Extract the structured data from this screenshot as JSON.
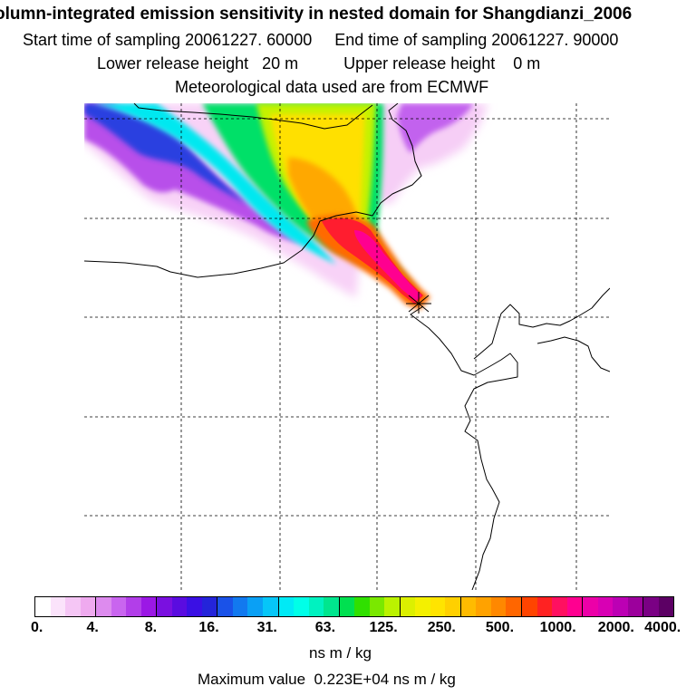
{
  "header": {
    "title": "olumn-integrated emission sensitivity in nested domain for Shangdianzi_2006",
    "sampling": "Start time of sampling 20061227. 60000     End time of sampling 20061227. 90000",
    "release": "Lower release height   20 m          Upper release height    0 m",
    "met": "Meteorological data used are from ECMWF"
  },
  "colorbar": {
    "tick_labels": [
      "0.",
      "4.",
      "8.",
      "16.",
      "31.",
      "63.",
      "125.",
      "250.",
      "500.",
      "1000.",
      "2000.",
      "4000."
    ],
    "units": "ns m / kg",
    "colors": [
      "#ffffff",
      "#fbe3fb",
      "#f5c6f5",
      "#efaaef",
      "#dd8bee",
      "#c965ef",
      "#b23ee9",
      "#9b18e5",
      "#7a10e0",
      "#5a0ce0",
      "#3a10e4",
      "#2424da",
      "#1a52e8",
      "#1279ef",
      "#0aa0f5",
      "#06c6f8",
      "#00eaf6",
      "#00ffe8",
      "#00f2c0",
      "#00e68e",
      "#00e050",
      "#30e000",
      "#7ae800",
      "#bbf200",
      "#dcf000",
      "#f4f000",
      "#ffe400",
      "#ffd000",
      "#ffbb00",
      "#ffa200",
      "#ff8800",
      "#ff6600",
      "#ff4400",
      "#ff2222",
      "#ff1060",
      "#ff0090",
      "#ec00a8",
      "#d800b4",
      "#bc00b4",
      "#9c009c",
      "#7a0084",
      "#5c0064"
    ]
  },
  "footer": {
    "max_value": "Maximum value  0.223E+04 ns m / kg"
  }
}
